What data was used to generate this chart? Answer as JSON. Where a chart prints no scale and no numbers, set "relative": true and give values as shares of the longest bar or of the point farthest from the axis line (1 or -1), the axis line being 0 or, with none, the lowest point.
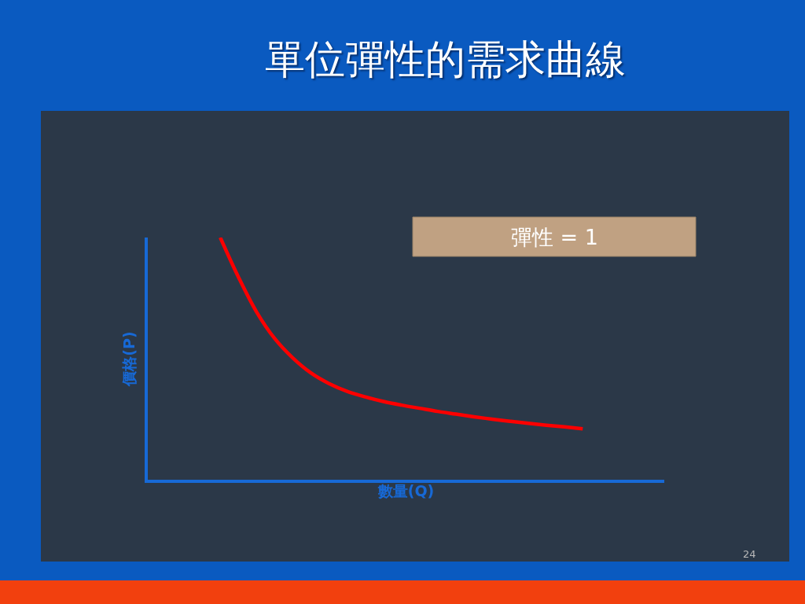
{
  "chart_data": {
    "type": "line",
    "relative": true,
    "title": "單位彈性的需求曲線",
    "xlabel": "數量(Q)",
    "ylabel": "價格(P)",
    "annotations": [
      "彈性 = 1",
      "24"
    ],
    "categories": [
      null,
      null,
      null,
      null,
      null,
      null,
      null,
      null,
      null,
      null,
      null,
      null,
      null,
      null,
      null,
      null,
      null,
      null,
      null,
      null,
      null,
      null,
      null,
      null,
      null,
      null,
      null,
      null,
      null
    ],
    "color": "#ff0000",
    "values": [
      null,
      null,
      null,
      null,
      1.0,
      0.837,
      0.693,
      0.583,
      0.503,
      0.441,
      0.397,
      0.365,
      0.342,
      0.323,
      0.308,
      0.295,
      0.282,
      0.271,
      0.26,
      0.25,
      0.241,
      0.233,
      0.225,
      0.218,
      0.21,
      null,
      null,
      null,
      null
    ],
    "grid": false,
    "marker": "none",
    "line_style": "solid"
  }
}
